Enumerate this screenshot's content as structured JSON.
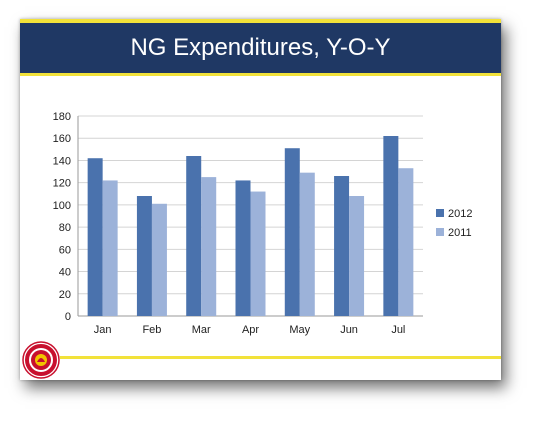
{
  "slide": {
    "title": "NG Expenditures, Y-O-Y"
  },
  "logo": {
    "name": "seal-logo",
    "colors": {
      "ring": "#c8102e",
      "inner": "#f2c300"
    }
  },
  "colors": {
    "title_bg": "#1f3864",
    "accent": "#f2e23a",
    "series_2012": "#4a72ad",
    "series_2011": "#9cb2d9"
  },
  "chart_data": {
    "type": "bar",
    "title": "",
    "xlabel": "",
    "ylabel": "",
    "ylim": [
      0,
      180
    ],
    "yticks": [
      0,
      20,
      40,
      60,
      80,
      100,
      120,
      140,
      160,
      180
    ],
    "grid": true,
    "legend_position": "right",
    "categories": [
      "Jan",
      "Feb",
      "Mar",
      "Apr",
      "May",
      "Jun",
      "Jul"
    ],
    "series": [
      {
        "name": "2012",
        "color": "#4a72ad",
        "values": [
          142,
          108,
          144,
          122,
          151,
          126,
          162
        ]
      },
      {
        "name": "2011",
        "color": "#9cb2d9",
        "values": [
          122,
          101,
          125,
          112,
          129,
          108,
          133
        ]
      }
    ]
  }
}
